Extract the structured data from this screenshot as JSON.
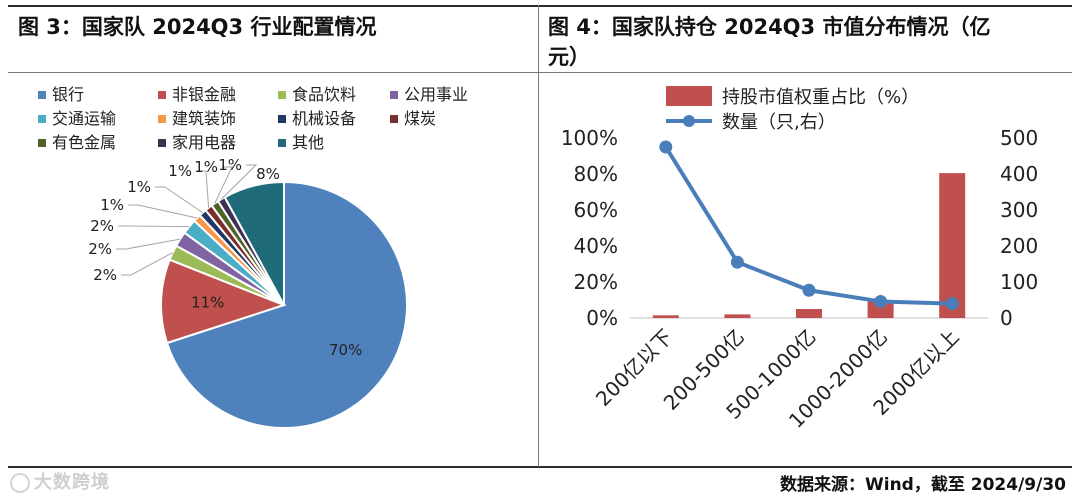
{
  "left_title": "图 3：国家队 2024Q3 行业配置情况",
  "right_title": "图 4：国家队持仓 2024Q3 市值分布情况（亿元）",
  "source_text": "数据来源：Wind，截至 2024/9/30",
  "watermark_text": "大数跨境",
  "chart_data": [
    {
      "type": "pie",
      "title": "",
      "legend_placement": "top",
      "slices": [
        {
          "label": "银行",
          "value": 70,
          "value_label": "70%",
          "color": "#4f81bd"
        },
        {
          "label": "非银金融",
          "value": 11,
          "value_label": "11%",
          "color": "#c0504d"
        },
        {
          "label": "食品饮料",
          "value": 2,
          "value_label": "2%",
          "color": "#9bbb59"
        },
        {
          "label": "公用事业",
          "value": 2,
          "value_label": "2%",
          "color": "#8064a2"
        },
        {
          "label": "交通运输",
          "value": 2,
          "value_label": "2%",
          "color": "#4bacc6"
        },
        {
          "label": "建筑装饰",
          "value": 1,
          "value_label": "1%",
          "color": "#f79646"
        },
        {
          "label": "机械设备",
          "value": 1,
          "value_label": "1%",
          "color": "#1f3864"
        },
        {
          "label": "煤炭",
          "value": 1,
          "value_label": "1%",
          "color": "#7b2c2c"
        },
        {
          "label": "有色金属",
          "value": 1,
          "value_label": "1%",
          "color": "#4f6228"
        },
        {
          "label": "家用电器",
          "value": 1,
          "value_label": "1%",
          "color": "#3f3151"
        },
        {
          "label": "其他",
          "value": 8,
          "value_label": "8%",
          "color": "#1f6b7a"
        }
      ]
    },
    {
      "type": "bar+line",
      "title": "",
      "categories": [
        "200亿以下",
        "200-500亿",
        "500-1000亿",
        "1000-2000亿",
        "2000亿以上"
      ],
      "series": [
        {
          "name": "持股市值权重占比（%）",
          "type": "bar",
          "axis": "left",
          "color": "#c0504d",
          "values": [
            1.5,
            2.0,
            5.0,
            10.0,
            80.5
          ]
        },
        {
          "name": "数量（只,右）",
          "type": "line",
          "axis": "right",
          "color": "#4a7ebb",
          "values": [
            475,
            155,
            77,
            46,
            40
          ]
        }
      ],
      "y_left": {
        "min": 0,
        "max": 100,
        "ticks": [
          "0%",
          "20%",
          "40%",
          "60%",
          "80%",
          "100%"
        ]
      },
      "y_right": {
        "min": 0,
        "max": 500,
        "ticks": [
          "0",
          "100",
          "200",
          "300",
          "400",
          "500"
        ]
      },
      "legend_placement": "top",
      "grid": false
    }
  ]
}
